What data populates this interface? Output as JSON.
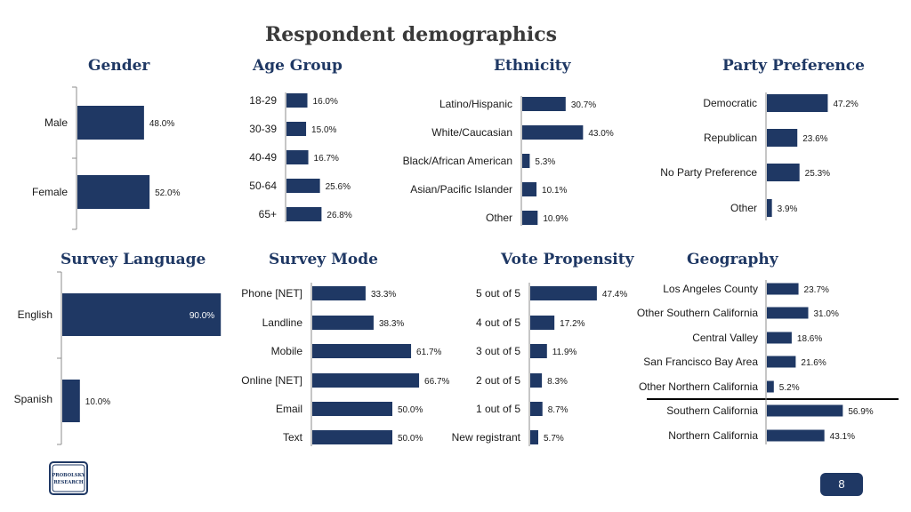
{
  "page": {
    "title": "Respondent demographics",
    "page_number": "8",
    "logo_text": "PROBOLSKY RESEARCH"
  },
  "colors": {
    "bar": "#1f3864",
    "title": "#1f3864",
    "axis": "#8c8c8c"
  },
  "chart_data": [
    {
      "id": "gender",
      "type": "bar",
      "orientation": "horizontal",
      "title": "Gender",
      "categories": [
        "Male",
        "Female"
      ],
      "values": [
        48.0,
        52.0
      ],
      "labels": [
        "48.0%",
        "52.0%"
      ],
      "xlim": [
        0,
        100
      ]
    },
    {
      "id": "age",
      "type": "bar",
      "orientation": "horizontal",
      "title": "Age Group",
      "categories": [
        "18-29",
        "30-39",
        "40-49",
        "50-64",
        "65+"
      ],
      "values": [
        16.0,
        15.0,
        16.7,
        25.6,
        26.8
      ],
      "labels": [
        "16.0%",
        "15.0%",
        "16.7%",
        "25.6%",
        "26.8%"
      ],
      "xlim": [
        0,
        100
      ]
    },
    {
      "id": "ethnicity",
      "type": "bar",
      "orientation": "horizontal",
      "title": "Ethnicity",
      "categories": [
        "Latino/Hispanic",
        "White/Caucasian",
        "Black/African American",
        "Asian/Pacific Islander",
        "Other"
      ],
      "values": [
        30.7,
        43.0,
        5.3,
        10.1,
        10.9
      ],
      "labels": [
        "30.7%",
        "43.0%",
        "5.3%",
        "10.1%",
        "10.9%"
      ],
      "xlim": [
        0,
        100
      ]
    },
    {
      "id": "party",
      "type": "bar",
      "orientation": "horizontal",
      "title": "Party Preference",
      "categories": [
        "Democratic",
        "Republican",
        "No Party Preference",
        "Other"
      ],
      "values": [
        47.2,
        23.6,
        25.3,
        3.9
      ],
      "labels": [
        "47.2%",
        "23.6%",
        "25.3%",
        "3.9%"
      ],
      "xlim": [
        0,
        100
      ]
    },
    {
      "id": "language",
      "type": "bar",
      "orientation": "horizontal",
      "title": "Survey Language",
      "categories": [
        "English",
        "Spanish"
      ],
      "values": [
        90.0,
        10.0
      ],
      "labels": [
        "90.0%",
        "10.0%"
      ],
      "xlim": [
        0,
        100
      ]
    },
    {
      "id": "mode",
      "type": "bar",
      "orientation": "horizontal",
      "title": "Survey Mode",
      "categories": [
        "Phone [NET]",
        "Landline",
        "Mobile",
        "Online [NET]",
        "Email",
        "Text"
      ],
      "values": [
        33.3,
        38.3,
        61.7,
        66.7,
        50.0,
        50.0
      ],
      "labels": [
        "33.3%",
        "38.3%",
        "61.7%",
        "66.7%",
        "50.0%",
        "50.0%"
      ],
      "xlim": [
        0,
        100
      ]
    },
    {
      "id": "propensity",
      "type": "bar",
      "orientation": "horizontal",
      "title": "Vote Propensity",
      "categories": [
        "5 out of 5",
        "4 out of 5",
        "3 out of 5",
        "2 out of 5",
        "1 out of 5",
        "New registrant"
      ],
      "values": [
        47.4,
        17.2,
        11.9,
        8.3,
        8.7,
        5.7
      ],
      "labels": [
        "47.4%",
        "17.2%",
        "11.9%",
        "8.3%",
        "8.7%",
        "5.7%"
      ],
      "xlim": [
        0,
        100
      ]
    },
    {
      "id": "geography",
      "type": "bar",
      "orientation": "horizontal",
      "title": "Geography",
      "categories": [
        "Los Angeles County",
        "Other Southern California",
        "Central Valley",
        "San Francisco Bay Area",
        "Other Northern California",
        "Southern California",
        "Northern California"
      ],
      "values": [
        23.7,
        31.0,
        18.6,
        21.6,
        5.2,
        56.9,
        43.1
      ],
      "labels": [
        "23.7%",
        "31.0%",
        "18.6%",
        "21.6%",
        "5.2%",
        "56.9%",
        "43.1%"
      ],
      "xlim": [
        0,
        100
      ]
    }
  ]
}
